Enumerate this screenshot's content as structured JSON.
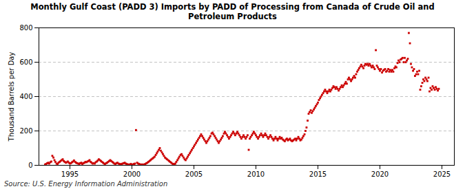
{
  "chart_data": {
    "type": "scatter",
    "title": "Monthly Gulf Coast (PADD 3) Imports by PADD of Processing from Canada of Crude Oil and\nPetroleum Products",
    "ylabel": "Thousand Barrels per Day",
    "source": "Source: U.S. Energy Information Administration",
    "color": "#cc0000",
    "marker": "square",
    "grid": true,
    "xlim": [
      1992.5,
      2026.0
    ],
    "xticks": [
      1995,
      2000,
      2005,
      2010,
      2015,
      2020,
      2025
    ],
    "ylim": [
      0,
      800
    ],
    "yticks": [
      0,
      200,
      400,
      600,
      800
    ],
    "x": [
      1993.0,
      1993.08,
      1993.17,
      1993.25,
      1993.33,
      1993.42,
      1993.5,
      1993.58,
      1993.67,
      1993.75,
      1993.83,
      1993.92,
      1994.0,
      1994.08,
      1994.17,
      1994.25,
      1994.33,
      1994.42,
      1994.5,
      1994.58,
      1994.67,
      1994.75,
      1994.83,
      1994.92,
      1995.0,
      1995.08,
      1995.17,
      1995.25,
      1995.33,
      1995.42,
      1995.5,
      1995.58,
      1995.67,
      1995.75,
      1995.83,
      1995.92,
      1996.0,
      1996.08,
      1996.17,
      1996.25,
      1996.33,
      1996.42,
      1996.5,
      1996.58,
      1996.67,
      1996.75,
      1996.83,
      1996.92,
      1997.0,
      1997.08,
      1997.17,
      1997.25,
      1997.33,
      1997.42,
      1997.5,
      1997.58,
      1997.67,
      1997.75,
      1997.83,
      1997.92,
      1998.0,
      1998.08,
      1998.17,
      1998.25,
      1998.33,
      1998.42,
      1998.5,
      1998.58,
      1998.67,
      1998.75,
      1998.83,
      1998.92,
      1999.0,
      1999.08,
      1999.17,
      1999.25,
      1999.33,
      1999.42,
      1999.5,
      1999.58,
      1999.67,
      1999.75,
      1999.83,
      1999.92,
      2000.0,
      2000.08,
      2000.17,
      2000.25,
      2000.33,
      2000.42,
      2000.5,
      2000.58,
      2000.67,
      2000.75,
      2000.83,
      2000.92,
      2001.0,
      2001.08,
      2001.17,
      2001.25,
      2001.33,
      2001.42,
      2001.5,
      2001.58,
      2001.67,
      2001.75,
      2001.83,
      2001.92,
      2002.0,
      2002.08,
      2002.17,
      2002.25,
      2002.33,
      2002.42,
      2002.5,
      2002.58,
      2002.67,
      2002.75,
      2002.83,
      2002.92,
      2003.0,
      2003.08,
      2003.17,
      2003.25,
      2003.33,
      2003.42,
      2003.5,
      2003.58,
      2003.67,
      2003.75,
      2003.83,
      2003.92,
      2004.0,
      2004.08,
      2004.17,
      2004.25,
      2004.33,
      2004.42,
      2004.5,
      2004.58,
      2004.67,
      2004.75,
      2004.83,
      2004.92,
      2005.0,
      2005.08,
      2005.17,
      2005.25,
      2005.33,
      2005.42,
      2005.5,
      2005.58,
      2005.67,
      2005.75,
      2005.83,
      2005.92,
      2006.0,
      2006.08,
      2006.17,
      2006.25,
      2006.33,
      2006.42,
      2006.5,
      2006.58,
      2006.67,
      2006.75,
      2006.83,
      2006.92,
      2007.0,
      2007.08,
      2007.17,
      2007.25,
      2007.33,
      2007.42,
      2007.5,
      2007.58,
      2007.67,
      2007.75,
      2007.83,
      2007.92,
      2008.0,
      2008.08,
      2008.17,
      2008.25,
      2008.33,
      2008.42,
      2008.5,
      2008.58,
      2008.67,
      2008.75,
      2008.83,
      2008.92,
      2009.0,
      2009.08,
      2009.17,
      2009.25,
      2009.33,
      2009.42,
      2009.5,
      2009.58,
      2009.67,
      2009.75,
      2009.83,
      2009.92,
      2010.0,
      2010.08,
      2010.17,
      2010.25,
      2010.33,
      2010.42,
      2010.5,
      2010.58,
      2010.67,
      2010.75,
      2010.83,
      2010.92,
      2011.0,
      2011.08,
      2011.17,
      2011.25,
      2011.33,
      2011.42,
      2011.5,
      2011.58,
      2011.67,
      2011.75,
      2011.83,
      2011.92,
      2012.0,
      2012.08,
      2012.17,
      2012.25,
      2012.33,
      2012.42,
      2012.5,
      2012.58,
      2012.67,
      2012.75,
      2012.83,
      2012.92,
      2013.0,
      2013.08,
      2013.17,
      2013.25,
      2013.33,
      2013.42,
      2013.5,
      2013.58,
      2013.67,
      2013.75,
      2013.83,
      2013.92,
      2014.0,
      2014.08,
      2014.17,
      2014.25,
      2014.33,
      2014.42,
      2014.5,
      2014.58,
      2014.67,
      2014.75,
      2014.83,
      2014.92,
      2015.0,
      2015.08,
      2015.17,
      2015.25,
      2015.33,
      2015.42,
      2015.5,
      2015.58,
      2015.67,
      2015.75,
      2015.83,
      2015.92,
      2016.0,
      2016.08,
      2016.17,
      2016.25,
      2016.33,
      2016.42,
      2016.5,
      2016.58,
      2016.67,
      2016.75,
      2016.83,
      2016.92,
      2017.0,
      2017.08,
      2017.17,
      2017.25,
      2017.33,
      2017.42,
      2017.5,
      2017.58,
      2017.67,
      2017.75,
      2017.83,
      2017.92,
      2018.0,
      2018.08,
      2018.17,
      2018.25,
      2018.33,
      2018.42,
      2018.5,
      2018.58,
      2018.67,
      2018.75,
      2018.83,
      2018.92,
      2019.0,
      2019.08,
      2019.17,
      2019.25,
      2019.33,
      2019.42,
      2019.5,
      2019.58,
      2019.67,
      2019.75,
      2019.83,
      2019.92,
      2020.0,
      2020.08,
      2020.17,
      2020.25,
      2020.33,
      2020.42,
      2020.5,
      2020.58,
      2020.67,
      2020.75,
      2020.83,
      2020.92,
      2021.0,
      2021.08,
      2021.17,
      2021.25,
      2021.33,
      2021.42,
      2021.5,
      2021.58,
      2021.67,
      2021.75,
      2021.83,
      2021.92,
      2022.0,
      2022.08,
      2022.17,
      2022.25,
      2022.33,
      2022.42,
      2022.5,
      2022.58,
      2022.67,
      2022.75,
      2022.83,
      2022.92,
      2023.0,
      2023.08,
      2023.17,
      2023.25,
      2023.33,
      2023.42,
      2023.5,
      2023.58,
      2023.67,
      2023.75,
      2023.83,
      2023.92,
      2024.0,
      2024.08,
      2024.17,
      2024.25,
      2024.33,
      2024.42,
      2024.5,
      2024.58,
      2024.67,
      2024.75
    ],
    "values": [
      5,
      8,
      12,
      15,
      10,
      18,
      22,
      55,
      45,
      30,
      20,
      10,
      8,
      15,
      20,
      25,
      30,
      35,
      25,
      20,
      15,
      18,
      22,
      15,
      10,
      12,
      18,
      22,
      28,
      20,
      15,
      12,
      10,
      8,
      12,
      15,
      8,
      12,
      15,
      20,
      18,
      22,
      25,
      30,
      20,
      15,
      10,
      12,
      10,
      18,
      22,
      28,
      35,
      30,
      25,
      20,
      15,
      10,
      8,
      12,
      15,
      20,
      25,
      30,
      25,
      20,
      15,
      10,
      8,
      12,
      15,
      10,
      8,
      5,
      8,
      10,
      12,
      15,
      10,
      8,
      5,
      3,
      5,
      8,
      3,
      5,
      8,
      10,
      205,
      15,
      10,
      8,
      5,
      3,
      5,
      3,
      5,
      8,
      12,
      15,
      20,
      25,
      30,
      35,
      40,
      45,
      50,
      60,
      70,
      80,
      90,
      100,
      85,
      75,
      65,
      55,
      45,
      40,
      35,
      30,
      25,
      20,
      15,
      10,
      8,
      5,
      10,
      20,
      30,
      40,
      50,
      60,
      65,
      55,
      45,
      35,
      30,
      40,
      50,
      60,
      70,
      80,
      90,
      100,
      110,
      120,
      130,
      140,
      150,
      160,
      170,
      180,
      170,
      160,
      150,
      140,
      130,
      140,
      150,
      160,
      170,
      185,
      190,
      180,
      170,
      160,
      150,
      140,
      130,
      140,
      150,
      160,
      170,
      185,
      195,
      185,
      175,
      165,
      155,
      165,
      175,
      185,
      195,
      185,
      175,
      185,
      195,
      185,
      175,
      165,
      155,
      165,
      175,
      165,
      155,
      165,
      175,
      90,
      155,
      165,
      175,
      185,
      195,
      185,
      175,
      165,
      155,
      165,
      175,
      185,
      175,
      165,
      175,
      185,
      175,
      165,
      155,
      165,
      175,
      165,
      155,
      145,
      155,
      165,
      155,
      145,
      155,
      165,
      155,
      160,
      150,
      145,
      140,
      150,
      155,
      145,
      150,
      155,
      145,
      140,
      145,
      150,
      155,
      145,
      155,
      165,
      155,
      145,
      150,
      160,
      170,
      180,
      200,
      220,
      260,
      300,
      310,
      320,
      305,
      315,
      325,
      335,
      345,
      355,
      365,
      380,
      390,
      400,
      410,
      420,
      430,
      440,
      430,
      420,
      430,
      440,
      430,
      440,
      450,
      460,
      455,
      445,
      455,
      445,
      435,
      445,
      455,
      465,
      455,
      465,
      475,
      485,
      475,
      500,
      510,
      500,
      490,
      500,
      510,
      520,
      510,
      530,
      545,
      555,
      565,
      575,
      585,
      575,
      565,
      580,
      590,
      585,
      590,
      580,
      590,
      580,
      570,
      580,
      570,
      560,
      670,
      580,
      570,
      560,
      550,
      560,
      540,
      550,
      555,
      560,
      545,
      550,
      560,
      545,
      555,
      545,
      555,
      545,
      565,
      575,
      570,
      595,
      610,
      600,
      615,
      620,
      625,
      600,
      625,
      600,
      610,
      620,
      770,
      710,
      590,
      570,
      550,
      560,
      520,
      530,
      545,
      530,
      550,
      440,
      460,
      480,
      500,
      490,
      510,
      500,
      490,
      510,
      430,
      450,
      440,
      460,
      450,
      440,
      455,
      445,
      435,
      445
    ]
  }
}
